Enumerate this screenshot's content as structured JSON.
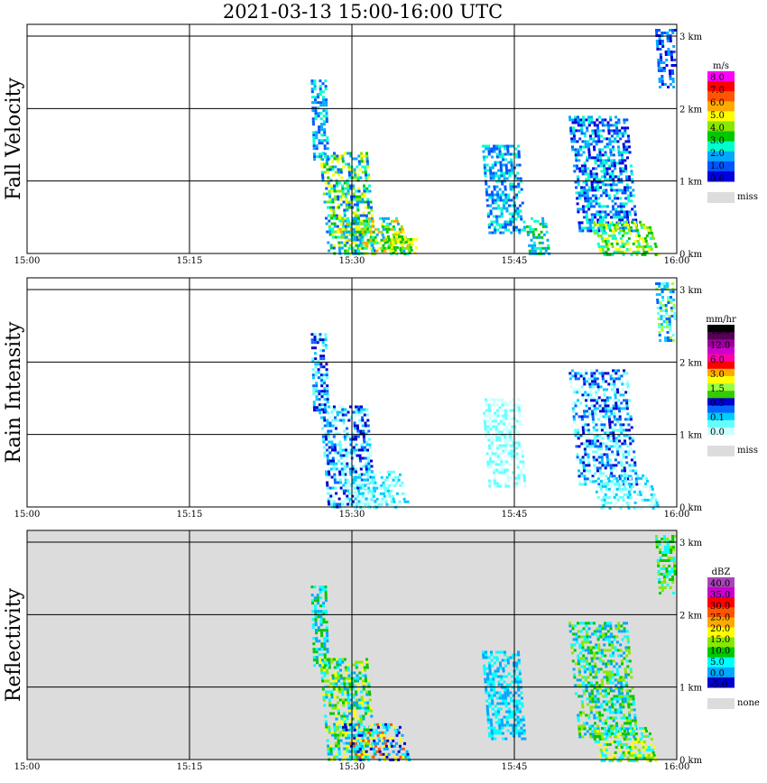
{
  "title": "2021-03-13   15:00-16:00 UTC",
  "colors": {
    "frame": "#000000",
    "missing": "#dcdcdc",
    "background": "#ffffff"
  },
  "chart_data": [
    {
      "type": "heatmap",
      "name": "Fall Velocity",
      "ylabel": "Fall Velocity",
      "xlabels": [
        "15:00",
        "15:15",
        "15:30",
        "15:45",
        "16:00"
      ],
      "ylabels": [
        "0 km",
        "1 km",
        "2 km",
        "3 km"
      ],
      "xlim": [
        "15:00",
        "16:00"
      ],
      "ylim_km": [
        0,
        3
      ],
      "grid": true,
      "background": "#ffffff",
      "colorbar": {
        "unit": "m/s",
        "colors": [
          "#0000dd",
          "#0055ff",
          "#00a8ff",
          "#00ffcc",
          "#00c800",
          "#88e800",
          "#ffff00",
          "#ffaa00",
          "#ff5500",
          "#ff0000",
          "#ff00ff"
        ],
        "labels": [
          "8.0",
          "7.0",
          "6.0",
          "5.0",
          "4.0",
          "3.0",
          "2.0",
          "1.0",
          "0.0"
        ],
        "missing_label": "miss"
      },
      "echoes": [
        {
          "t": [
            27,
            31.5
          ],
          "h": [
            0,
            1.4
          ],
          "mix": [
            3,
            4,
            5,
            2,
            6,
            1
          ]
        },
        {
          "t": [
            26.2,
            27.5
          ],
          "h": [
            1.3,
            2.4
          ],
          "mix": [
            2,
            3,
            1
          ]
        },
        {
          "t": [
            28.5,
            34.5
          ],
          "h": [
            0,
            0.5
          ],
          "mix": [
            4,
            5,
            3,
            6,
            2,
            7
          ]
        },
        {
          "t": [
            33,
            36
          ],
          "h": [
            0,
            0.25
          ],
          "mix": [
            5,
            6,
            4
          ]
        },
        {
          "t": [
            42,
            45.5
          ],
          "h": [
            0.3,
            1.5
          ],
          "mix": [
            2,
            3,
            1
          ]
        },
        {
          "t": [
            46,
            48
          ],
          "h": [
            0,
            0.5
          ],
          "mix": [
            3,
            2,
            4
          ]
        },
        {
          "t": [
            50,
            55.5
          ],
          "h": [
            0.3,
            1.9
          ],
          "mix": [
            1,
            2,
            3,
            0
          ]
        },
        {
          "t": [
            52,
            57.5
          ],
          "h": [
            0,
            0.45
          ],
          "mix": [
            4,
            5,
            6,
            3
          ]
        },
        {
          "t": [
            58,
            60
          ],
          "h": [
            2.3,
            3.1
          ],
          "mix": [
            1,
            2,
            0
          ]
        }
      ]
    },
    {
      "type": "heatmap",
      "name": "Rain Intensity",
      "ylabel": "Rain Intensity",
      "xlabels": [
        "15:00",
        "15:15",
        "15:30",
        "15:45",
        "16:00"
      ],
      "ylabels": [
        "0 km",
        "1 km",
        "2 km",
        "3 km"
      ],
      "xlim": [
        "15:00",
        "16:00"
      ],
      "ylim_km": [
        0,
        3
      ],
      "grid": true,
      "background": "#ffffff",
      "colorbar": {
        "unit": "mm/hr",
        "colors": [
          "#ccffff",
          "#66ffff",
          "#00ccff",
          "#0066ff",
          "#0000cc",
          "#33cc00",
          "#99ff44",
          "#ffff00",
          "#ffaa00",
          "#ff0000",
          "#ff00aa",
          "#cc00cc",
          "#990099",
          "#550055",
          "#000000"
        ],
        "labels": [
          "48.0",
          "12.0",
          "6.0",
          "3.0",
          "1.5",
          "0.5",
          "0.1",
          "0.0"
        ],
        "missing_label": "miss"
      },
      "echoes": [
        {
          "t": [
            27,
            31.5
          ],
          "h": [
            0,
            1.4
          ],
          "mix": [
            0,
            1,
            2,
            3,
            4
          ]
        },
        {
          "t": [
            26.2,
            27.5
          ],
          "h": [
            1.3,
            2.4
          ],
          "mix": [
            1,
            2,
            3,
            4
          ]
        },
        {
          "t": [
            29,
            34.5
          ],
          "h": [
            0,
            0.5
          ],
          "mix": [
            0,
            1,
            2
          ]
        },
        {
          "t": [
            42,
            45.5
          ],
          "h": [
            0.3,
            1.5
          ],
          "mix": [
            0,
            1
          ]
        },
        {
          "t": [
            50,
            55.5
          ],
          "h": [
            0.3,
            1.9
          ],
          "mix": [
            0,
            1,
            2,
            3,
            4
          ]
        },
        {
          "t": [
            52,
            57.5
          ],
          "h": [
            0,
            0.45
          ],
          "mix": [
            0,
            1,
            2
          ]
        },
        {
          "t": [
            58,
            60
          ],
          "h": [
            2.3,
            3.1
          ],
          "mix": [
            1,
            2,
            3,
            6
          ]
        }
      ]
    },
    {
      "type": "heatmap",
      "name": "Reflectivity",
      "ylabel": "Reflectivity",
      "xlabels": [
        "15:00",
        "15:15",
        "15:30",
        "15:45",
        "16:00"
      ],
      "ylabels": [
        "0 km",
        "1 km",
        "2 km",
        "3 km"
      ],
      "xlim": [
        "15:00",
        "16:00"
      ],
      "ylim_km": [
        0,
        3
      ],
      "grid": true,
      "background": "#dcdcdc",
      "colorbar": {
        "unit": "dBZ",
        "colors": [
          "#0000cc",
          "#00a8ff",
          "#00ffff",
          "#00c800",
          "#88e800",
          "#ffff00",
          "#ffaa00",
          "#ff5500",
          "#ff0000",
          "#cc00cc",
          "#aa44bb"
        ],
        "labels": [
          "40.0",
          "35.0",
          "30.0",
          "25.0",
          "20.0",
          "15.0",
          "10.0",
          "5.0",
          "0.0",
          "-5.0"
        ],
        "missing_label": "none"
      },
      "echoes": [
        {
          "t": [
            27,
            31.5
          ],
          "h": [
            0,
            1.4
          ],
          "mix": [
            1,
            2,
            3,
            4,
            5
          ]
        },
        {
          "t": [
            26.2,
            27.5
          ],
          "h": [
            1.3,
            2.4
          ],
          "mix": [
            1,
            2,
            3
          ]
        },
        {
          "t": [
            29,
            34.5
          ],
          "h": [
            0,
            0.5
          ],
          "mix": [
            0,
            1,
            2,
            5,
            7
          ]
        },
        {
          "t": [
            42,
            45.5
          ],
          "h": [
            0.3,
            1.5
          ],
          "mix": [
            1,
            2
          ]
        },
        {
          "t": [
            50,
            55.5
          ],
          "h": [
            0.3,
            1.9
          ],
          "mix": [
            1,
            2,
            3,
            4
          ]
        },
        {
          "t": [
            52,
            57.5
          ],
          "h": [
            0,
            0.45
          ],
          "mix": [
            2,
            3,
            4,
            5
          ]
        },
        {
          "t": [
            58,
            60
          ],
          "h": [
            2.3,
            3.1
          ],
          "mix": [
            2,
            3,
            4
          ]
        }
      ]
    }
  ]
}
